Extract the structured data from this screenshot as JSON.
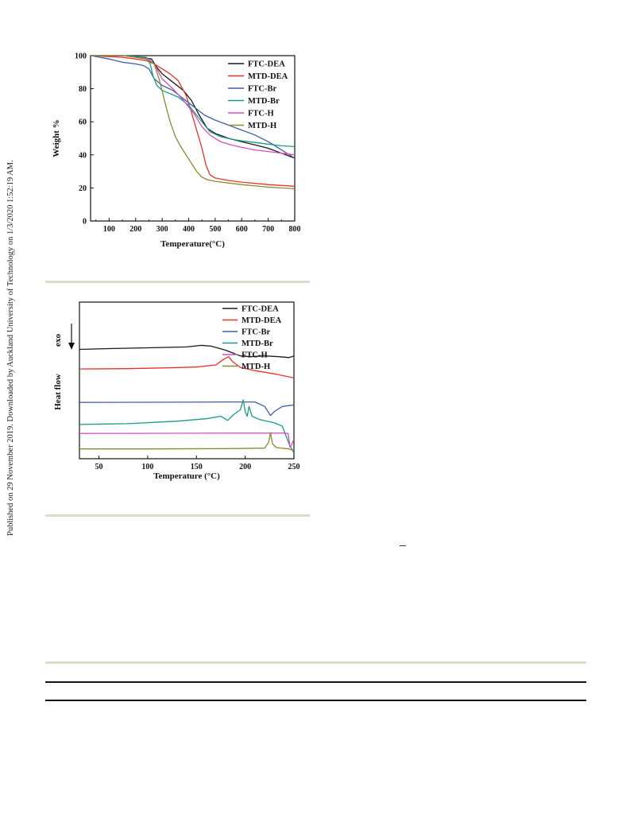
{
  "page": {
    "side_note": "Published on 29 November 2019. Downloaded by Auckland University of Technology on 1/3/2020 1:52:19 AM."
  },
  "chart_data": [
    {
      "type": "line",
      "title": "",
      "xlabel": "Temperature(°C)",
      "ylabel": "Weight %",
      "xlim": [
        30,
        800
      ],
      "ylim": [
        0,
        100
      ],
      "x_ticks": [
        100,
        200,
        300,
        400,
        500,
        600,
        700,
        800
      ],
      "y_ticks": [
        0,
        20,
        40,
        60,
        80,
        100
      ],
      "grid": false,
      "legend_position": "top-right",
      "series": [
        {
          "name": "FTC-DEA",
          "color": "#1a1a1a",
          "points": [
            [
              30,
              100
            ],
            [
              150,
              100
            ],
            [
              220,
              99
            ],
            [
              260,
              98
            ],
            [
              280,
              93
            ],
            [
              300,
              89
            ],
            [
              340,
              84
            ],
            [
              380,
              79
            ],
            [
              410,
              73
            ],
            [
              440,
              64
            ],
            [
              470,
              56
            ],
            [
              500,
              53
            ],
            [
              550,
              50
            ],
            [
              600,
              48
            ],
            [
              650,
              46
            ],
            [
              700,
              44
            ],
            [
              750,
              41
            ],
            [
              800,
              38
            ]
          ]
        },
        {
          "name": "MTD-DEA",
          "color": "#e8322b",
          "points": [
            [
              30,
              100
            ],
            [
              150,
              99
            ],
            [
              200,
              98
            ],
            [
              240,
              97
            ],
            [
              270,
              95
            ],
            [
              300,
              92
            ],
            [
              330,
              89
            ],
            [
              360,
              85
            ],
            [
              390,
              76
            ],
            [
              410,
              66
            ],
            [
              430,
              55
            ],
            [
              450,
              44
            ],
            [
              465,
              34
            ],
            [
              480,
              28
            ],
            [
              500,
              26
            ],
            [
              550,
              24.5
            ],
            [
              600,
              23.5
            ],
            [
              700,
              22
            ],
            [
              800,
              21
            ]
          ]
        },
        {
          "name": "FTC-Br",
          "color": "#3f5fa8",
          "points": [
            [
              30,
              100
            ],
            [
              100,
              98
            ],
            [
              150,
              96
            ],
            [
              200,
              95
            ],
            [
              230,
              94
            ],
            [
              250,
              92
            ],
            [
              270,
              86
            ],
            [
              300,
              82
            ],
            [
              340,
              79
            ],
            [
              380,
              74
            ],
            [
              420,
              69
            ],
            [
              460,
              64
            ],
            [
              500,
              61
            ],
            [
              550,
              58
            ],
            [
              600,
              55
            ],
            [
              650,
              52
            ],
            [
              700,
              48
            ],
            [
              750,
              43
            ],
            [
              800,
              38
            ]
          ]
        },
        {
          "name": "MTD-Br",
          "color": "#1a9a8a",
          "points": [
            [
              30,
              100
            ],
            [
              150,
              100
            ],
            [
              200,
              99.5
            ],
            [
              240,
              99
            ],
            [
              255,
              95
            ],
            [
              265,
              88
            ],
            [
              280,
              82
            ],
            [
              300,
              79
            ],
            [
              330,
              77
            ],
            [
              360,
              75
            ],
            [
              400,
              70
            ],
            [
              440,
              62
            ],
            [
              480,
              54
            ],
            [
              520,
              51
            ],
            [
              560,
              49.5
            ],
            [
              600,
              48.5
            ],
            [
              650,
              47.5
            ],
            [
              700,
              46.5
            ],
            [
              750,
              45.5
            ],
            [
              800,
              45
            ]
          ]
        },
        {
          "name": "FTC-H",
          "color": "#d050c0",
          "points": [
            [
              30,
              100
            ],
            [
              150,
              100
            ],
            [
              200,
              99
            ],
            [
              250,
              98
            ],
            [
              270,
              95
            ],
            [
              300,
              86
            ],
            [
              340,
              80
            ],
            [
              380,
              73
            ],
            [
              420,
              65
            ],
            [
              450,
              57
            ],
            [
              480,
              52
            ],
            [
              520,
              48
            ],
            [
              560,
              46
            ],
            [
              600,
              44.5
            ],
            [
              650,
              43
            ],
            [
              700,
              42
            ],
            [
              750,
              41
            ],
            [
              800,
              40
            ]
          ]
        },
        {
          "name": "MTD-H",
          "color": "#8a8a30",
          "points": [
            [
              30,
              100
            ],
            [
              150,
              100
            ],
            [
              200,
              99
            ],
            [
              240,
              98
            ],
            [
              270,
              95
            ],
            [
              290,
              85
            ],
            [
              310,
              72
            ],
            [
              330,
              60
            ],
            [
              350,
              51
            ],
            [
              370,
              45
            ],
            [
              390,
              40
            ],
            [
              410,
              35
            ],
            [
              430,
              30
            ],
            [
              450,
              26.5
            ],
            [
              470,
              25
            ],
            [
              500,
              24
            ],
            [
              550,
              23
            ],
            [
              600,
              22
            ],
            [
              700,
              20.5
            ],
            [
              800,
              19.5
            ]
          ]
        }
      ]
    },
    {
      "type": "line",
      "title": "",
      "xlabel": "Temperature (°C)",
      "ylabel": "Heat flow",
      "ylabel_extra": "exo",
      "xlim": [
        30,
        250
      ],
      "x_ticks": [
        50,
        100,
        150,
        200,
        250
      ],
      "y_ticks_shown": false,
      "grid": false,
      "legend_position": "top-right",
      "series": [
        {
          "name": "FTC-DEA",
          "color": "#1a1a1a",
          "points": [
            [
              30,
              6.1
            ],
            [
              60,
              6.15
            ],
            [
              100,
              6.2
            ],
            [
              140,
              6.25
            ],
            [
              155,
              6.35
            ],
            [
              165,
              6.3
            ],
            [
              180,
              6.05
            ],
            [
              195,
              5.7
            ],
            [
              205,
              5.65
            ],
            [
              220,
              5.7
            ],
            [
              235,
              5.65
            ],
            [
              245,
              5.6
            ],
            [
              250,
              5.7
            ]
          ]
        },
        {
          "name": "MTD-DEA",
          "color": "#e8322b",
          "points": [
            [
              30,
              4.9
            ],
            [
              80,
              4.92
            ],
            [
              120,
              4.97
            ],
            [
              150,
              5.02
            ],
            [
              170,
              5.15
            ],
            [
              178,
              5.5
            ],
            [
              183,
              5.65
            ],
            [
              187,
              5.35
            ],
            [
              195,
              5.0
            ],
            [
              210,
              4.8
            ],
            [
              230,
              4.6
            ],
            [
              250,
              4.35
            ]
          ]
        },
        {
          "name": "FTC-Br",
          "color": "#3f5fa8",
          "points": [
            [
              30,
              2.85
            ],
            [
              100,
              2.86
            ],
            [
              180,
              2.88
            ],
            [
              210,
              2.88
            ],
            [
              220,
              2.6
            ],
            [
              226,
              2.05
            ],
            [
              230,
              2.3
            ],
            [
              238,
              2.6
            ],
            [
              250,
              2.7
            ]
          ]
        },
        {
          "name": "MTD-Br",
          "color": "#1a9a8a",
          "points": [
            [
              30,
              1.5
            ],
            [
              80,
              1.55
            ],
            [
              130,
              1.7
            ],
            [
              160,
              1.85
            ],
            [
              175,
              2.0
            ],
            [
              182,
              1.75
            ],
            [
              188,
              2.1
            ],
            [
              195,
              2.4
            ],
            [
              198,
              3.0
            ],
            [
              200,
              2.3
            ],
            [
              202,
              2.0
            ],
            [
              204,
              2.6
            ],
            [
              207,
              2.0
            ],
            [
              215,
              1.8
            ],
            [
              230,
              1.6
            ],
            [
              238,
              1.4
            ],
            [
              245,
              0.3
            ],
            [
              250,
              -0.25
            ]
          ]
        },
        {
          "name": "FTC-H",
          "color": "#d050c0",
          "points": [
            [
              30,
              0.95
            ],
            [
              120,
              0.96
            ],
            [
              200,
              0.97
            ],
            [
              240,
              0.97
            ],
            [
              244,
              0.95
            ],
            [
              246,
              0.1
            ],
            [
              248,
              0.3
            ],
            [
              250,
              0.6
            ]
          ]
        },
        {
          "name": "MTD-H",
          "color": "#8a8a30",
          "points": [
            [
              30,
              0.0
            ],
            [
              100,
              0.0
            ],
            [
              180,
              0.02
            ],
            [
              220,
              0.05
            ],
            [
              224,
              0.4
            ],
            [
              226,
              1.0
            ],
            [
              228,
              0.3
            ],
            [
              232,
              0.08
            ],
            [
              245,
              0.0
            ],
            [
              250,
              -0.1
            ]
          ]
        }
      ]
    }
  ]
}
